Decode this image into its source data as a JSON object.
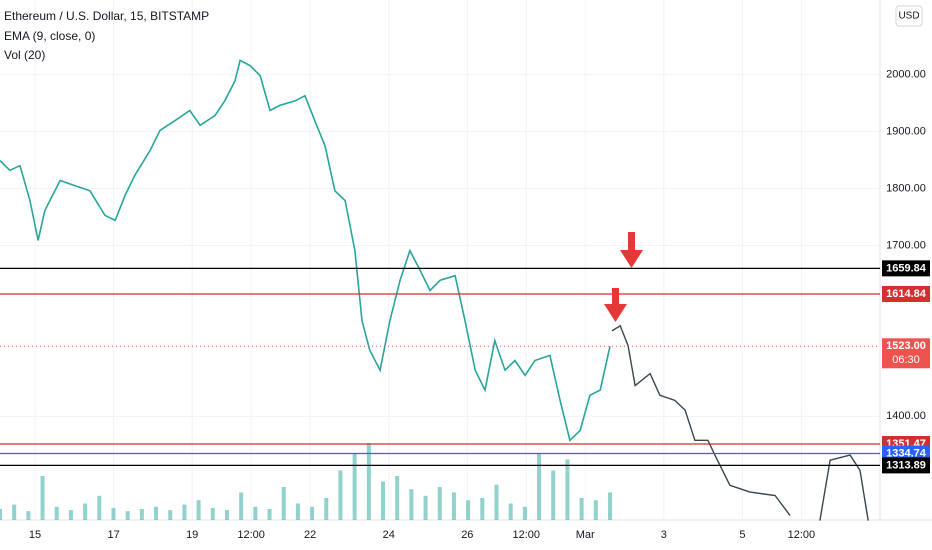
{
  "header": {
    "title": "Ethereum / U.S. Dollar, 15, BITSTAMP",
    "indicators": [
      "EMA (9, close, 0)",
      "Vol (20)"
    ],
    "currency": "USD"
  },
  "chart_data": {
    "type": "line",
    "xlim": [
      -0.89,
      21.5
    ],
    "ylim": [
      1218,
      2131
    ],
    "xticks": [
      {
        "value": 0,
        "label": "15"
      },
      {
        "value": 2,
        "label": "17"
      },
      {
        "value": 4,
        "label": "19"
      },
      {
        "value": 5.5,
        "label": "12:00"
      },
      {
        "value": 7,
        "label": "22"
      },
      {
        "value": 9,
        "label": "24"
      },
      {
        "value": 11,
        "label": "26"
      },
      {
        "value": 12.5,
        "label": "12:00"
      },
      {
        "value": 14,
        "label": "Mar"
      },
      {
        "value": 16,
        "label": "3"
      },
      {
        "value": 18,
        "label": "5"
      },
      {
        "value": 19.5,
        "label": "12:00"
      }
    ],
    "yticks": [
      {
        "value": 2000,
        "label": "2000.00"
      },
      {
        "value": 1900,
        "label": "1900.00"
      },
      {
        "value": 1800,
        "label": "1800.00"
      },
      {
        "value": 1700,
        "label": "1700.00"
      },
      {
        "value": 1400,
        "label": "1400.00"
      }
    ],
    "price": {
      "color": "#26a69a",
      "x": [
        -0.89,
        -0.64,
        -0.38,
        -0.13,
        0.08,
        0.25,
        0.64,
        1.02,
        1.4,
        1.78,
        2.04,
        2.29,
        2.54,
        2.93,
        3.18,
        3.56,
        3.94,
        4.2,
        4.58,
        4.83,
        5.09,
        5.22,
        5.47,
        5.73,
        5.98,
        6.23,
        6.62,
        6.87,
        7.12,
        7.38,
        7.63,
        7.89,
        8.14,
        8.32,
        8.52,
        8.78,
        9.03,
        9.29,
        9.54,
        9.8,
        10.05,
        10.31,
        10.69,
        10.94,
        11.2,
        11.45,
        11.7,
        11.96,
        12.21,
        12.47,
        12.72,
        13.1,
        13.36,
        13.61,
        13.87,
        14.12,
        14.38,
        14.63
      ],
      "values": [
        1849,
        1832,
        1840,
        1779,
        1709,
        1761,
        1814,
        1805,
        1796,
        1753,
        1744,
        1788,
        1823,
        1867,
        1902,
        1919,
        1937,
        1911,
        1928,
        1954,
        1989,
        2025,
        2016,
        1998,
        1937,
        1946,
        1954,
        1963,
        1919,
        1875,
        1796,
        1779,
        1691,
        1568,
        1516,
        1481,
        1568,
        1639,
        1691,
        1656,
        1621,
        1639,
        1647,
        1568,
        1481,
        1446,
        1533,
        1481,
        1498,
        1472,
        1498,
        1507,
        1428,
        1358,
        1375,
        1437,
        1446,
        1523
      ]
    },
    "projection": {
      "color": "#37474f",
      "x": [
        14.68,
        14.89,
        15.09,
        15.27,
        15.65,
        15.9,
        16.28,
        16.54,
        16.79,
        17.12,
        17.3,
        17.68,
        18.19,
        18.83,
        19.21,
        19.6,
        19.97,
        20.23,
        20.74,
        20.99,
        21.2
      ],
      "values": [
        1550,
        1559,
        1524,
        1454,
        1475,
        1437,
        1428,
        1411,
        1358,
        1358,
        1332,
        1279,
        1267,
        1261,
        1226,
        null,
        1217,
        1323,
        1332,
        1305,
        1217
      ]
    },
    "levels": [
      {
        "value": 1659.84,
        "color": "#000000"
      },
      {
        "value": 1614.84,
        "color": "#d32f2f"
      },
      {
        "value": {
          "value": 1523,
          "label": "1523.00"
        },
        "color": "#ef5350",
        "countdown": "06:30"
      },
      {
        "value": 1351.47,
        "color": "#d32f2f"
      },
      {
        "value": 1334.74,
        "color": "#2962ff"
      },
      {
        "value": 1313.89,
        "color": "#000000"
      }
    ],
    "volume": {
      "color": "#26a69a",
      "ylim": [
        0,
        100
      ],
      "values": [
        10,
        14,
        8,
        40,
        12,
        9,
        15,
        22,
        11,
        8,
        10,
        12,
        9,
        14,
        18,
        11,
        9,
        25,
        12,
        10,
        30,
        15,
        12,
        20,
        45,
        60,
        70,
        35,
        40,
        28,
        22,
        30,
        25,
        18,
        20,
        32,
        15,
        12,
        60,
        45,
        55,
        20,
        18,
        25
      ]
    }
  }
}
